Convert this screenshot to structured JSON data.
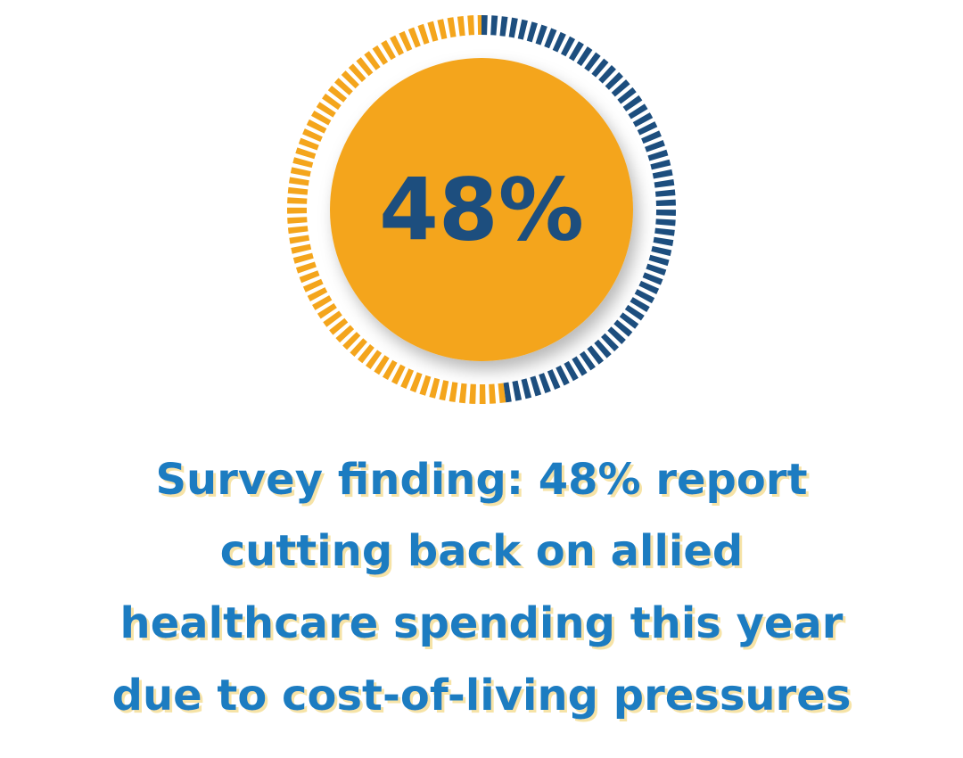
{
  "chart_data": {
    "type": "gauge",
    "value": 48,
    "value_label": "48%",
    "ylim": [
      0,
      100
    ],
    "color": "#1d4e7e",
    "rest_color": "#f4a51c",
    "center_color": "#f4a51c",
    "caption": [
      "Survey finding: 48% report",
      "cutting back on allied",
      "healthcare spending this year",
      "due to cost-of-living pressures"
    ],
    "caption_color": "#1f7cc1"
  }
}
